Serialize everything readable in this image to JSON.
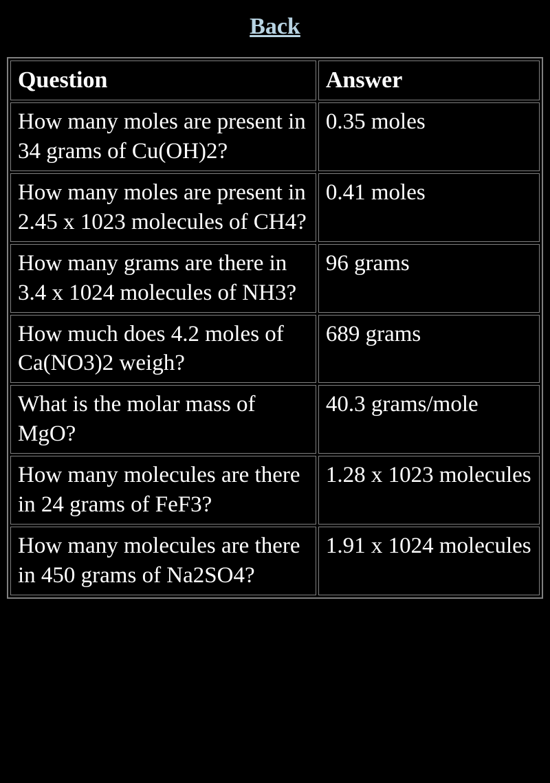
{
  "header": {
    "back_link": "Back"
  },
  "table": {
    "columns": [
      "Question",
      "Answer"
    ],
    "rows": [
      {
        "question": "How many moles are present in 34 grams of Cu(OH)2?",
        "answer": "0.35 moles"
      },
      {
        "question": "How many moles are present in 2.45 x 1023 molecules of CH4?",
        "answer": "0.41 moles"
      },
      {
        "question": "How many grams are there in 3.4 x 1024 molecules of NH3?",
        "answer": "96 grams"
      },
      {
        "question": "How much does 4.2 moles of Ca(NO3)2 weigh?",
        "answer": "689 grams"
      },
      {
        "question": "What is the molar mass of MgO?",
        "answer": "40.3 grams/mole"
      },
      {
        "question": "How many molecules are there in 24 grams of FeF3?",
        "answer": "1.28 x 1023 molecules"
      },
      {
        "question": "How many molecules are there in 450 grams of Na2SO4?",
        "answer": "1.91 x 1024 molecules"
      }
    ]
  },
  "styles": {
    "background_color": "#000000",
    "text_color": "#ffffff",
    "link_color": "#b8d4e3",
    "border_color": "#808080",
    "font_family": "Georgia, serif",
    "header_fontsize": 34,
    "cell_fontsize": 33
  }
}
